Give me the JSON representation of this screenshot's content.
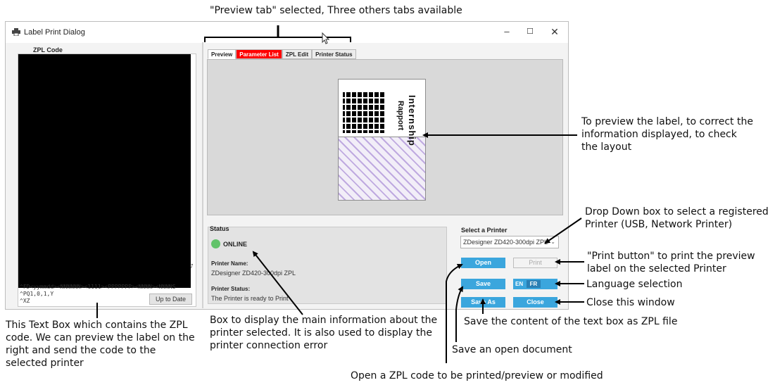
{
  "annotations": {
    "top": "\"Preview tab\" selected, Three others tabs available",
    "preview": [
      "To preview the label, to correct the",
      "information displayed,  to check",
      "the layout"
    ],
    "dropdown": [
      "Drop Down box to select a registered",
      "Printer (USB, Network Printer)"
    ],
    "print": [
      "\"Print button\" to print the preview",
      "label on the selected Printer"
    ],
    "language": "Language selection",
    "close": "Close this window",
    "save_as": "Save the content of the text box as ZPL file",
    "save": "Save an open document",
    "open": "Open a ZPL code to be printed/preview or modified",
    "textbox": [
      "This Text Box which contains the ZPL",
      "code. We can preview the label on the",
      "right and send the code to the",
      "selected printer"
    ],
    "status": [
      "Box to display the main information about the",
      "printer selected. It is also used to display the",
      "printer connection error"
    ]
  },
  "window": {
    "title": "Label Print Dialog",
    "controls": {
      "minimize": "–",
      "maximize": "☐",
      "close": "✕"
    }
  },
  "zpl": {
    "label": "ZPL Code",
    "visible_lines": [
      "^FD<yymmdd><NNNNNN><1111><PPPPPPP><NNNN><NNNNS",
      "^PQ1,0,1,Y",
      "^XZ"
    ],
    "side_char": "7",
    "up_to_date_button": "Up to Date"
  },
  "tabs": [
    {
      "label": "Preview",
      "active": true
    },
    {
      "label": "Parameter List",
      "active": false
    },
    {
      "label": "ZPL Edit",
      "active": false
    },
    {
      "label": "Printer Status",
      "active": false
    }
  ],
  "label_preview": {
    "words": [
      "Rapport",
      "Internship"
    ],
    "colors": {
      "stripe": "#a98dd6",
      "background": "#f2eef8"
    }
  },
  "status": {
    "title": "Status",
    "connection": "ONLINE",
    "printer_name_label": "Printer Name:",
    "printer_name": "ZDesigner ZD420-300dpi ZPL",
    "printer_status_label": "Printer Status:",
    "printer_status": "The Printer is ready to Print"
  },
  "printer_select": {
    "title": "Select a Printer",
    "selected": "ZDesigner ZD420-300dpi ZPL"
  },
  "buttons": {
    "open": "Open",
    "print": "Print",
    "save": "Save",
    "save_as": "Save As",
    "close": "Close",
    "lang_en": "EN",
    "lang_fr": "FR"
  },
  "colors": {
    "accent": "#3ba6dd",
    "online": "#62c36a",
    "highlight_tab": "#ff0000"
  }
}
